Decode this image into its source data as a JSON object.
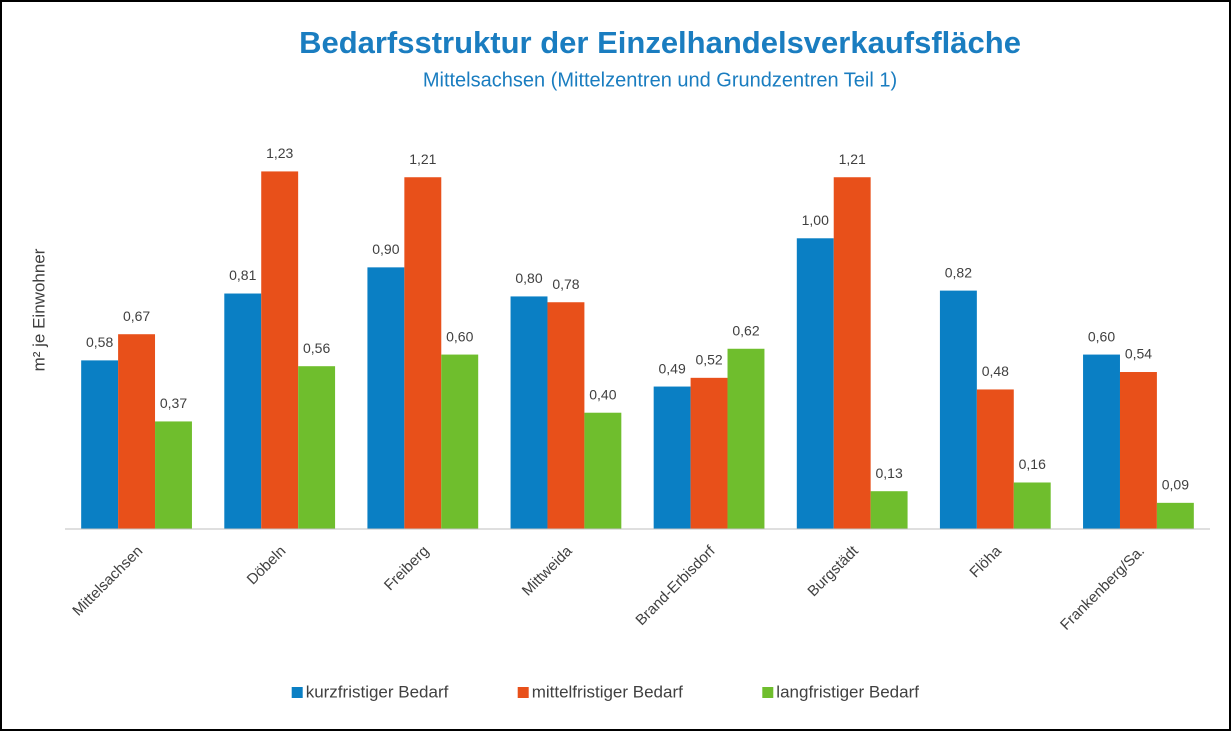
{
  "chart_data": {
    "type": "bar",
    "title": "Bedarfsstruktur der Einzelhandelsverkaufsfläche",
    "subtitle": "Mittelsachsen (Mittelzentren und Grundzentren Teil 1)",
    "y_label": "m² je Einwohner",
    "categories": [
      "Mittelsachsen",
      "Döbeln",
      "Freiberg",
      "Mittweida",
      "Brand-Erbisdorf",
      "Burgstädt",
      "Flöha",
      "Frankenberg/Sa."
    ],
    "series": [
      {
        "name": "kurzfristiger Bedarf",
        "color": "#0a7fc4",
        "values": [
          0.58,
          0.81,
          0.9,
          0.8,
          0.49,
          1.0,
          0.82,
          0.6
        ],
        "value_labels": [
          "0,58",
          "0,81",
          "0,90",
          "0,80",
          "0,49",
          "1,00",
          "0,82",
          "0,60"
        ]
      },
      {
        "name": "mittelfristiger Bedarf",
        "color": "#e8501a",
        "values": [
          0.67,
          1.23,
          1.21,
          0.78,
          0.52,
          1.21,
          0.48,
          0.54
        ],
        "value_labels": [
          "0,67",
          "1,23",
          "1,21",
          "0,78",
          "0,52",
          "1,21",
          "0,48",
          "0,54"
        ]
      },
      {
        "name": "langfristiger Bedarf",
        "color": "#6fbe2d",
        "values": [
          0.37,
          0.56,
          0.6,
          0.4,
          0.62,
          0.13,
          0.16,
          0.09
        ],
        "value_labels": [
          "0,37",
          "0,56",
          "0,60",
          "0,40",
          "0,62",
          "0,13",
          "0,16",
          "0,09"
        ]
      }
    ],
    "ylim": [
      0,
      1.4
    ],
    "legend": "bottom"
  }
}
